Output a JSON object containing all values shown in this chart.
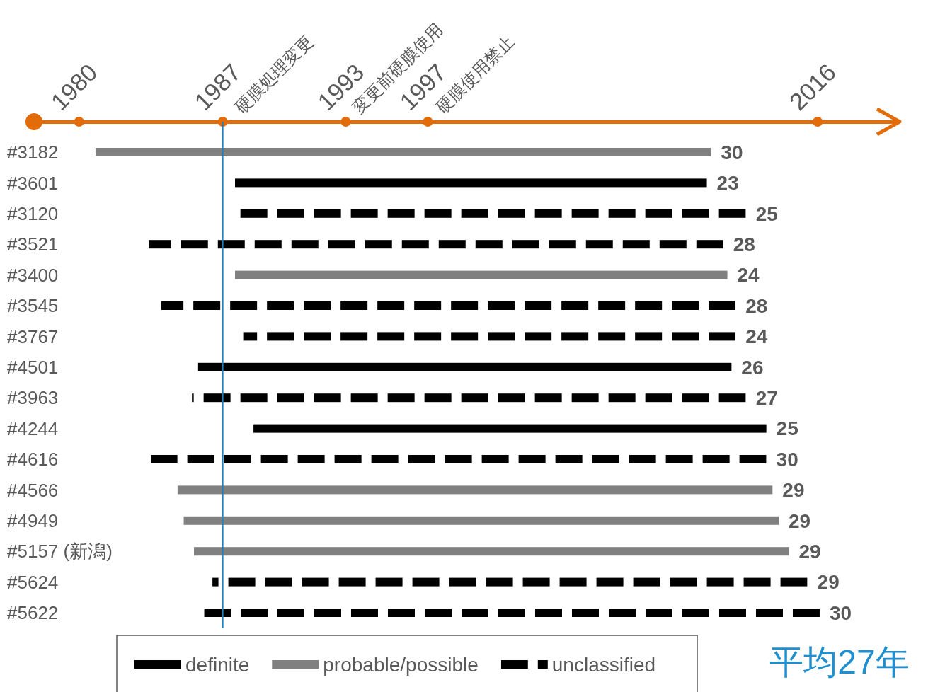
{
  "chart_data": {
    "type": "bar",
    "orientation": "horizontal",
    "categories": [
      "#3182",
      "#3601",
      "#3120",
      "#3521",
      "#3400",
      "#3545",
      "#3767",
      "#4501",
      "#3963",
      "#4244",
      "#4616",
      "#4566",
      "#4949",
      "#5157 (新潟)",
      "#5624",
      "#5622"
    ],
    "series": [
      {
        "name": "definite",
        "color": "#000000",
        "line_style": "solid",
        "base": [
          null,
          1987.6,
          null,
          null,
          null,
          null,
          null,
          1985.8,
          null,
          1988.5,
          null,
          null,
          null,
          null,
          null,
          null
        ],
        "values": [
          null,
          23,
          null,
          null,
          null,
          null,
          null,
          26,
          null,
          25,
          null,
          null,
          null,
          null,
          null,
          null
        ],
        "value_labels": [
          null,
          "23",
          null,
          null,
          null,
          null,
          null,
          "26",
          null,
          "25",
          null,
          null,
          null,
          null,
          null,
          null
        ]
      },
      {
        "name": "probable/possible",
        "color": "#808080",
        "line_style": "solid",
        "base": [
          1980.8,
          null,
          null,
          null,
          1987.6,
          null,
          null,
          null,
          null,
          null,
          null,
          1984.8,
          1985.1,
          1985.6,
          null,
          null
        ],
        "values": [
          30,
          null,
          null,
          null,
          24,
          null,
          null,
          null,
          null,
          null,
          null,
          29,
          29,
          29,
          null,
          null
        ],
        "value_labels": [
          "30",
          null,
          null,
          null,
          "24",
          null,
          null,
          null,
          null,
          null,
          null,
          "29",
          "29",
          "29",
          null,
          null
        ]
      },
      {
        "name": "unclassified",
        "color": "#000000",
        "line_style": "dashed",
        "base": [
          null,
          null,
          1987.5,
          1983.4,
          null,
          1984.0,
          1988.0,
          null,
          1985.5,
          null,
          1983.5,
          null,
          null,
          null,
          1986.5,
          1986.1
        ],
        "values": [
          null,
          null,
          25,
          28,
          null,
          28,
          24,
          null,
          27,
          null,
          30,
          null,
          null,
          null,
          29,
          30
        ],
        "value_labels": [
          null,
          null,
          "25",
          "28",
          null,
          "28",
          "24",
          null,
          "27",
          null,
          "30",
          null,
          null,
          null,
          "29",
          "30"
        ]
      }
    ],
    "xlim": [
      1977.8,
      2020
    ],
    "xticks": [
      1980,
      1987,
      1993,
      1997,
      2016
    ],
    "legend": "bottom",
    "ref_lines": [
      {
        "axis": "x",
        "value": 1987,
        "color": "#1f7fc0"
      }
    ],
    "annotations": [
      "硬膜処理変更",
      "変更前硬膜使用",
      "硬膜使用禁止",
      "平均27年"
    ]
  }
}
